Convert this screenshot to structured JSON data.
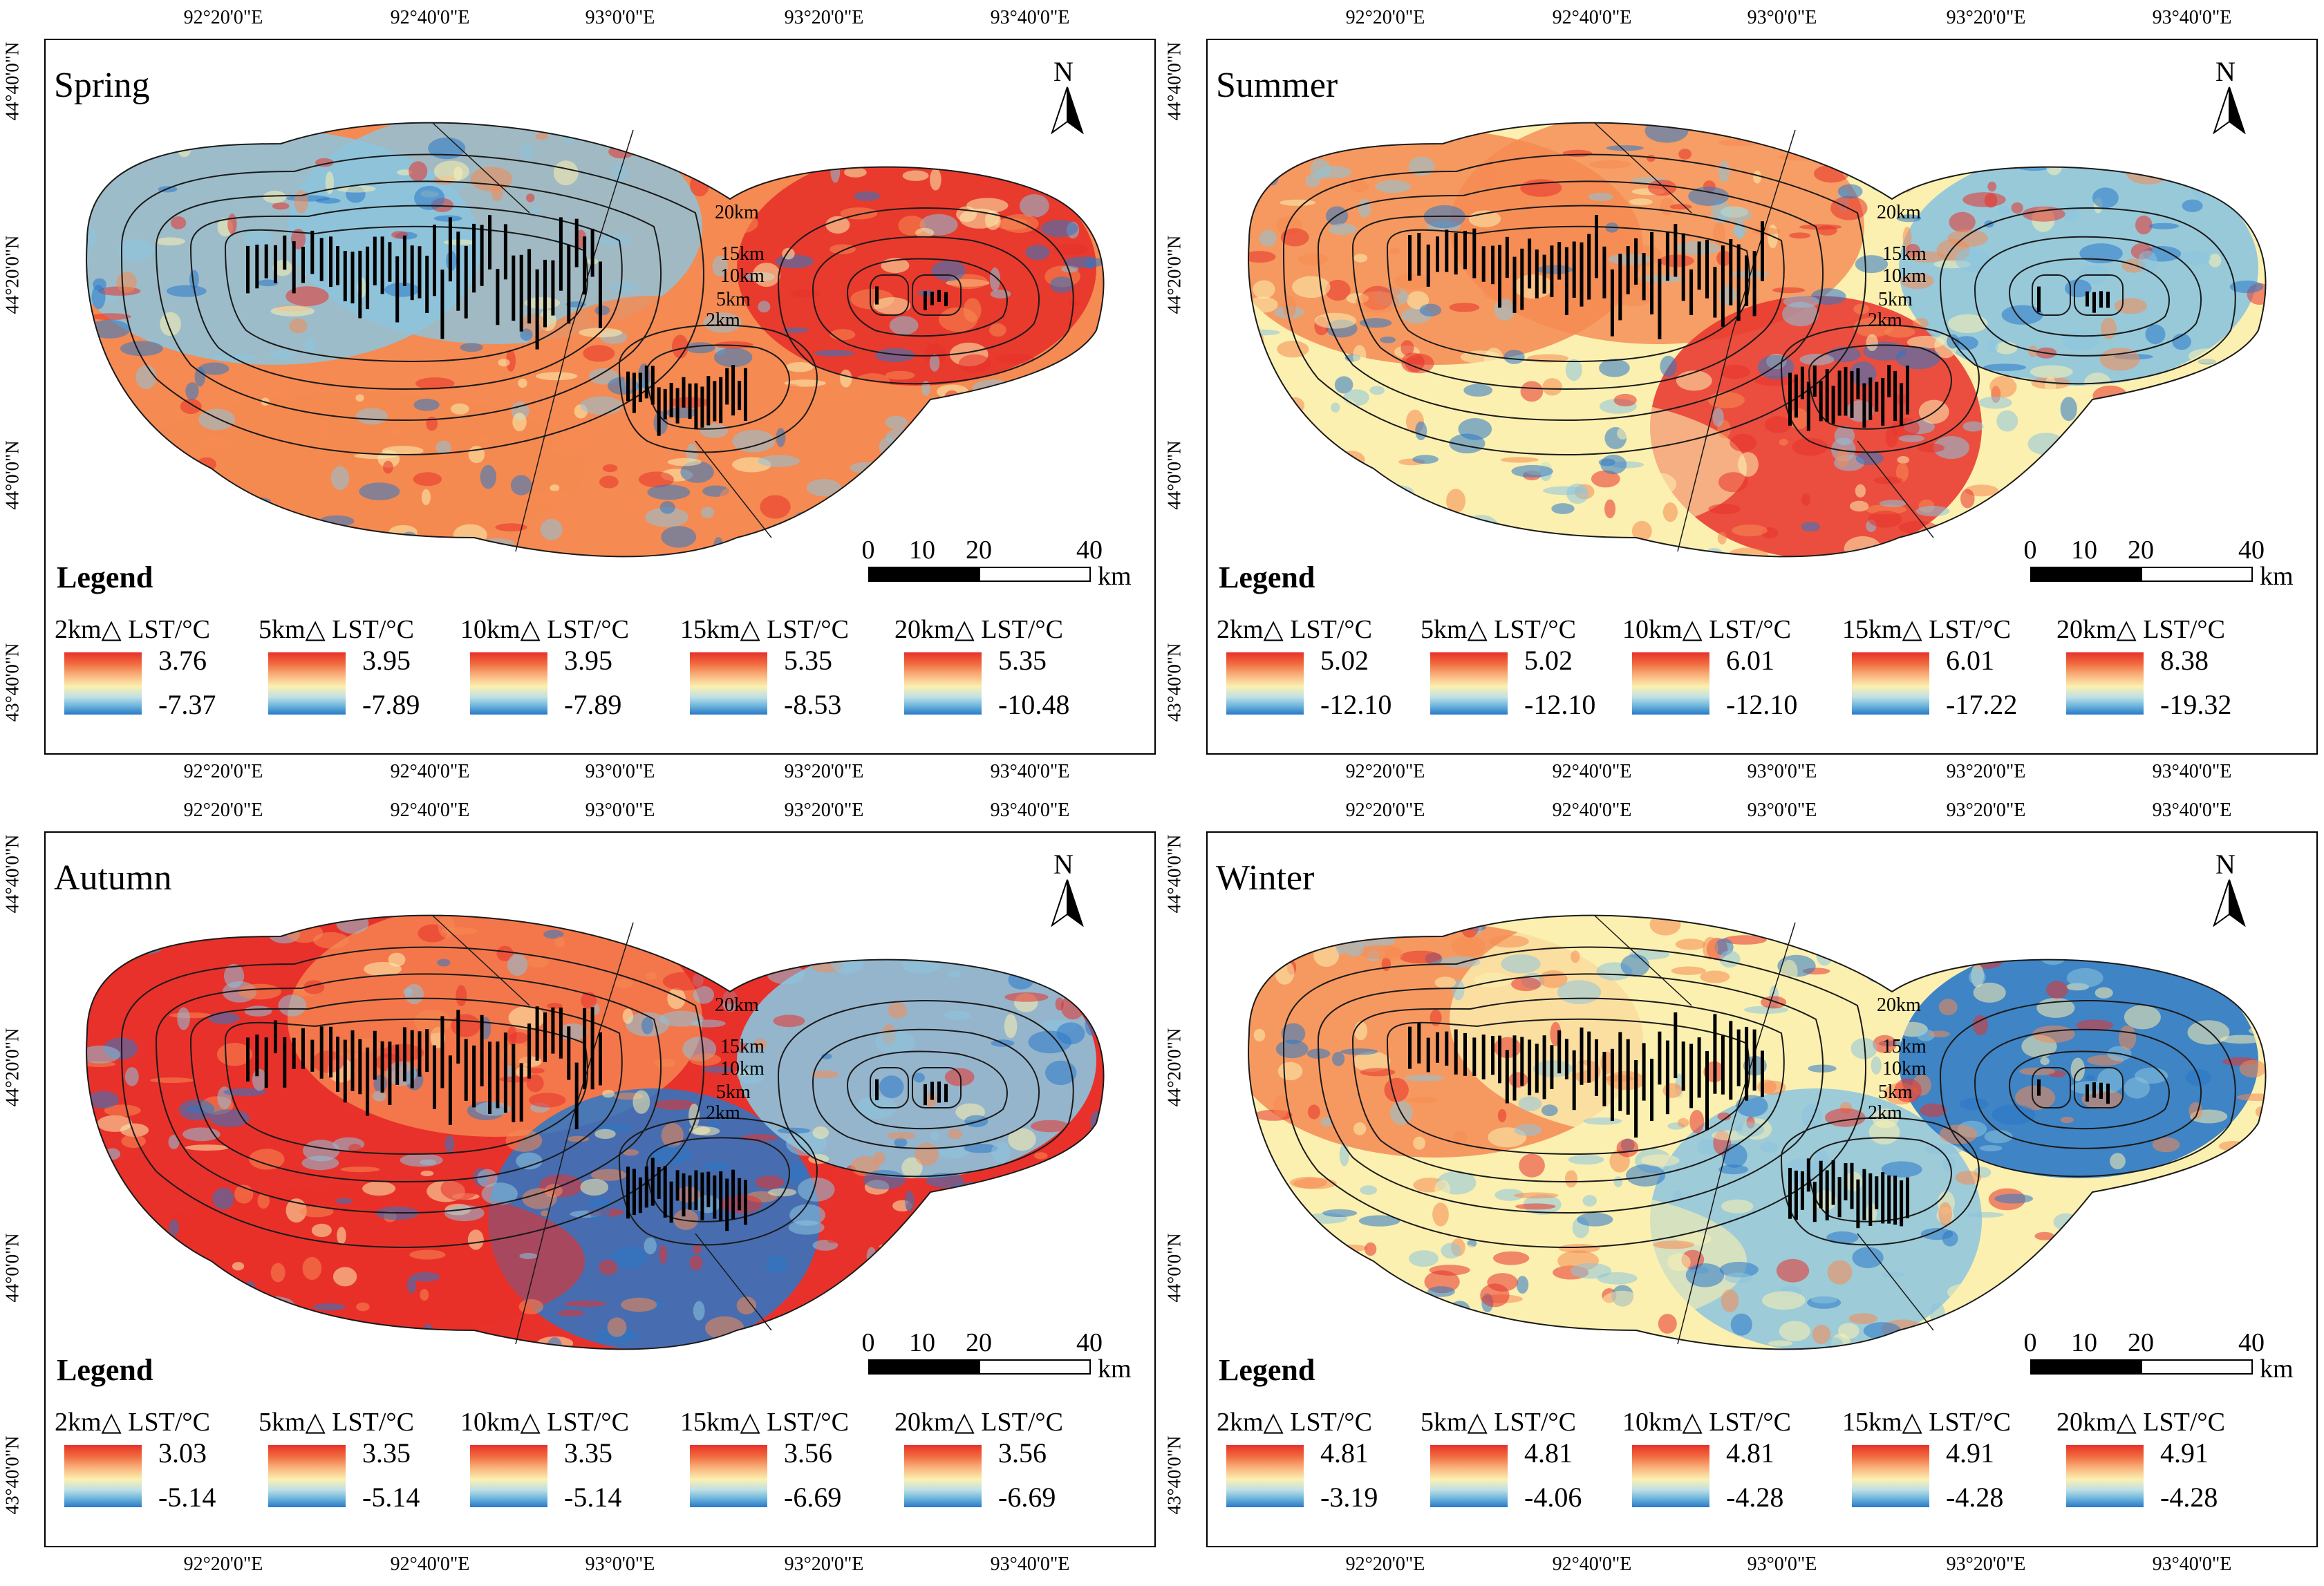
{
  "panels": [
    {
      "season": "Spring",
      "theme": "spring",
      "legend_title": "Legend",
      "legend": [
        {
          "label": "2km△ LST/°C",
          "max": "3.76",
          "min": "-7.37"
        },
        {
          "label": "5km△ LST/°C",
          "max": "3.95",
          "min": "-7.89"
        },
        {
          "label": "10km△ LST/°C",
          "max": "3.95",
          "min": "-7.89"
        },
        {
          "label": "15km△ LST/°C",
          "max": "5.35",
          "min": "-8.53"
        },
        {
          "label": "20km△ LST/°C",
          "max": "5.35",
          "min": "-10.48"
        }
      ]
    },
    {
      "season": "Summer",
      "theme": "summer",
      "legend_title": "Legend",
      "legend": [
        {
          "label": "2km△ LST/°C",
          "max": "5.02",
          "min": "-12.10"
        },
        {
          "label": "5km△ LST/°C",
          "max": "5.02",
          "min": "-12.10"
        },
        {
          "label": "10km△ LST/°C",
          "max": "6.01",
          "min": "-12.10"
        },
        {
          "label": "15km△ LST/°C",
          "max": "6.01",
          "min": "-17.22"
        },
        {
          "label": "20km△ LST/°C",
          "max": "8.38",
          "min": "-19.32"
        }
      ]
    },
    {
      "season": "Autumn",
      "theme": "autumn",
      "legend_title": "Legend",
      "legend": [
        {
          "label": "2km△ LST/°C",
          "max": "3.03",
          "min": "-5.14"
        },
        {
          "label": "5km△ LST/°C",
          "max": "3.35",
          "min": "-5.14"
        },
        {
          "label": "10km△ LST/°C",
          "max": "3.35",
          "min": "-5.14"
        },
        {
          "label": "15km△ LST/°C",
          "max": "3.56",
          "min": "-6.69"
        },
        {
          "label": "20km△ LST/°C",
          "max": "3.56",
          "min": "-6.69"
        }
      ]
    },
    {
      "season": "Winter",
      "theme": "winter",
      "legend_title": "Legend",
      "legend": [
        {
          "label": "2km△ LST/°C",
          "max": "4.81",
          "min": "-3.19"
        },
        {
          "label": "5km△ LST/°C",
          "max": "4.81",
          "min": "-4.06"
        },
        {
          "label": "10km△ LST/°C",
          "max": "4.81",
          "min": "-4.28"
        },
        {
          "label": "15km△ LST/°C",
          "max": "4.91",
          "min": "-4.28"
        },
        {
          "label": "20km△ LST/°C",
          "max": "4.91",
          "min": "-4.28"
        }
      ]
    }
  ],
  "longitude_ticks": [
    "92°20'0\"E",
    "92°40'0\"E",
    "93°0'0\"E",
    "93°20'0\"E",
    "93°40'0\"E"
  ],
  "latitude_ticks": [
    "44°40'0\"N",
    "44°20'0\"N",
    "44°0'0\"N",
    "43°40'0\"N"
  ],
  "buffer_labels": [
    "20km",
    "15km",
    "10km",
    "5km",
    "2km"
  ],
  "north_arrow": {
    "letter": "N",
    "icon": "north-arrow-icon"
  },
  "scale_bar": {
    "numbers": [
      "0",
      "10",
      "20",
      "40"
    ],
    "unit": "km"
  },
  "colors": {
    "hot": "#e8312a",
    "warm": "#f58a52",
    "mild": "#fbf0b0",
    "cool": "#8cc4de",
    "cold": "#2a78c8"
  }
}
